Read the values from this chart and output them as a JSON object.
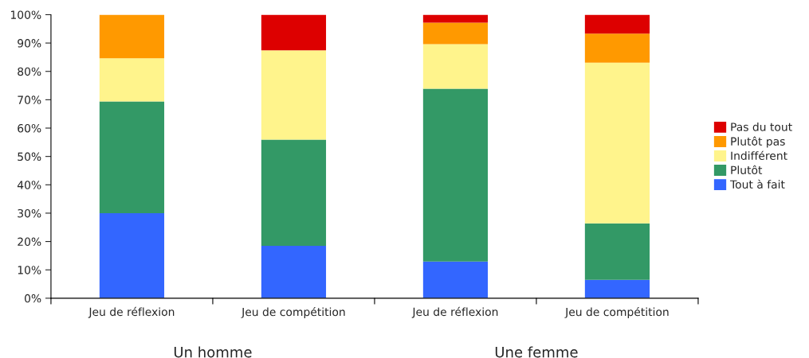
{
  "chart_data": {
    "type": "bar",
    "stacked": true,
    "categories": [
      "Jeu de réflexion",
      "Jeu de compétition",
      "Jeu de réflexion",
      "Jeu de compétition"
    ],
    "series": [
      {
        "name": "Tout à fait",
        "color": "#3366ff",
        "values": [
          30,
          18.5,
          12.9,
          6.5
        ]
      },
      {
        "name": "Plutôt",
        "color": "#339966",
        "values": [
          39.4,
          37.4,
          61,
          19.9
        ]
      },
      {
        "name": "Indifférent",
        "color": "#fff48c",
        "values": [
          15.2,
          31.5,
          15.7,
          56.7
        ]
      },
      {
        "name": "Plutôt pas",
        "color": "#ff9900",
        "values": [
          15.4,
          0,
          7.6,
          10.2
        ]
      },
      {
        "name": "Pas du tout",
        "color": "#dd0000",
        "values": [
          0,
          12.6,
          2.8,
          6.7
        ]
      }
    ],
    "ylim": [
      0,
      100
    ],
    "yticks": [
      {
        "value": 0,
        "label": "0%"
      },
      {
        "value": 10,
        "label": "10%"
      },
      {
        "value": 20,
        "label": "20%"
      },
      {
        "value": 30,
        "label": "30%"
      },
      {
        "value": 40,
        "label": "40%"
      },
      {
        "value": 50,
        "label": "50%"
      },
      {
        "value": 60,
        "label": "60%"
      },
      {
        "value": 70,
        "label": "70%"
      },
      {
        "value": 80,
        "label": "80%"
      },
      {
        "value": 90,
        "label": "90%"
      },
      {
        "value": 100,
        "label": "100%"
      }
    ],
    "annotations": [
      "Un homme",
      "Une femme"
    ],
    "grid": false,
    "legend": "right"
  }
}
